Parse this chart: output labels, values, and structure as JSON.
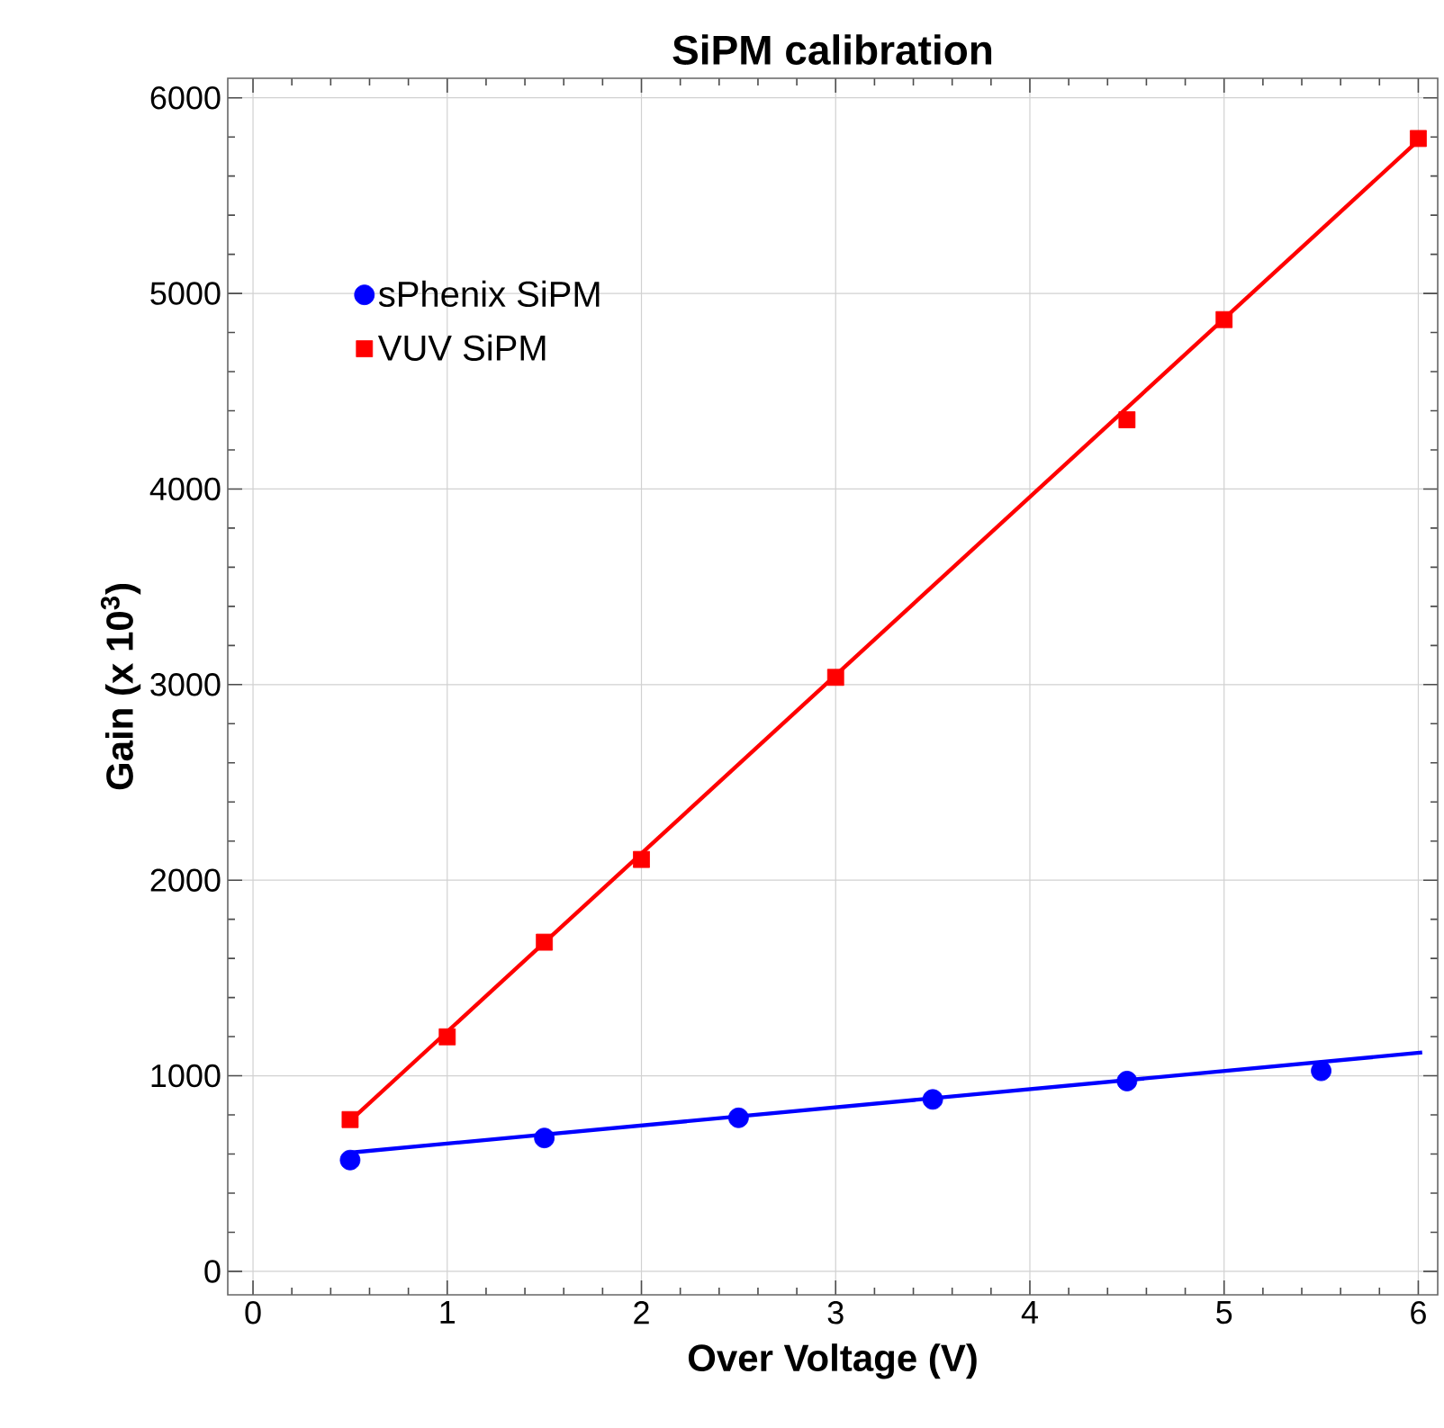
{
  "chart_data": {
    "type": "scatter",
    "title": "SiPM calibration",
    "xlabel": "Over Voltage (V)",
    "ylabel": "Gain (x 10$^{3}$)",
    "xlim": [
      -0.13,
      6.1
    ],
    "ylim": [
      -120,
      6100
    ],
    "xticks": [
      0,
      1,
      2,
      3,
      4,
      5,
      6
    ],
    "yticks": [
      0,
      1000,
      2000,
      3000,
      4000,
      5000,
      6000
    ],
    "grid": true,
    "legend": "top left",
    "series": [
      {
        "name": "sPhenix SiPM",
        "marker": "circle",
        "color": "#0000ff",
        "x": [
          0.5,
          1.5,
          2.5,
          3.5,
          4.5,
          5.5
        ],
        "values": [
          569,
          682,
          785,
          879,
          973,
          1025
        ]
      },
      {
        "name": "VUV SiPM",
        "marker": "square",
        "color": "#ff0000",
        "x": [
          0.5,
          1,
          1.5,
          2,
          3,
          4.5,
          5,
          6
        ],
        "values": [
          776,
          1199,
          1683,
          2106,
          3037,
          4354,
          4866,
          5792
        ]
      },
      {
        "type": "line",
        "marker": "none",
        "line_style": "solid",
        "color": "#0000ff",
        "x": [
          0.5,
          6.02
        ],
        "values": [
          607,
          1119
        ]
      },
      {
        "type": "line",
        "marker": "none",
        "line_style": "solid",
        "color": "#ff0000",
        "x": [
          0.5,
          6.02
        ],
        "values": [
          770,
          5800
        ]
      }
    ]
  }
}
